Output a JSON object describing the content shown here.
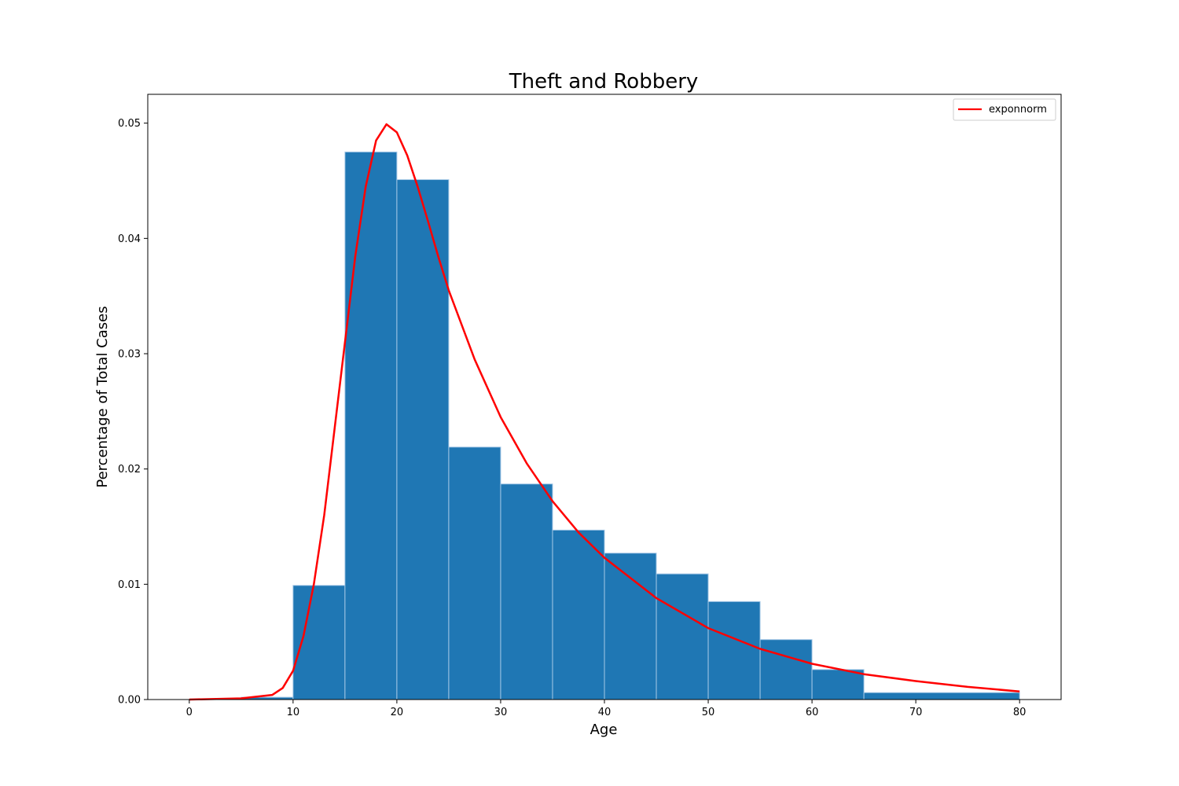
{
  "chart_data": {
    "type": "bar",
    "title": "Theft and Robbery",
    "xlabel": "Age",
    "ylabel": "Percentage of Total Cases",
    "xlim": [
      -4,
      84
    ],
    "ylim": [
      0,
      0.0525
    ],
    "x_ticks": [
      "0",
      "10",
      "20",
      "30",
      "40",
      "50",
      "60",
      "70",
      "80"
    ],
    "y_ticks": [
      "0.00",
      "0.01",
      "0.02",
      "0.03",
      "0.04",
      "0.05"
    ],
    "grid": false,
    "legend_position": "top-right",
    "bar_color": "#1f77b4",
    "bar_edge_color": "#a6c8e6",
    "histogram": {
      "name": "",
      "bins": [
        {
          "start": 5,
          "end": 10,
          "value": 0.0002
        },
        {
          "start": 10,
          "end": 15,
          "value": 0.0099
        },
        {
          "start": 15,
          "end": 20,
          "value": 0.0475
        },
        {
          "start": 20,
          "end": 25,
          "value": 0.0451
        },
        {
          "start": 25,
          "end": 30,
          "value": 0.0219
        },
        {
          "start": 30,
          "end": 35,
          "value": 0.0187
        },
        {
          "start": 35,
          "end": 40,
          "value": 0.0147
        },
        {
          "start": 40,
          "end": 45,
          "value": 0.0127
        },
        {
          "start": 45,
          "end": 50,
          "value": 0.0109
        },
        {
          "start": 50,
          "end": 55,
          "value": 0.0085
        },
        {
          "start": 55,
          "end": 60,
          "value": 0.0052
        },
        {
          "start": 60,
          "end": 65,
          "value": 0.0026
        },
        {
          "start": 65,
          "end": 80,
          "value": 0.0006
        }
      ]
    },
    "series": [
      {
        "name": "exponnorm",
        "color": "#ff0000",
        "x": [
          0,
          5,
          8,
          9,
          10,
          11,
          12,
          13,
          14,
          15,
          16,
          17,
          18,
          19,
          20,
          21,
          22,
          23,
          24,
          25,
          27.5,
          30,
          32.5,
          35,
          37.5,
          40,
          45,
          50,
          55,
          60,
          65,
          70,
          75,
          80
        ],
        "y": [
          0.0,
          0.0001,
          0.0004,
          0.001,
          0.0025,
          0.0055,
          0.01,
          0.016,
          0.0235,
          0.031,
          0.0385,
          0.0445,
          0.0485,
          0.0499,
          0.0492,
          0.0472,
          0.0445,
          0.0415,
          0.0384,
          0.0355,
          0.0295,
          0.0245,
          0.0205,
          0.0172,
          0.0145,
          0.0123,
          0.0088,
          0.0062,
          0.0044,
          0.0031,
          0.0022,
          0.0016,
          0.0011,
          0.0007
        ]
      }
    ]
  }
}
